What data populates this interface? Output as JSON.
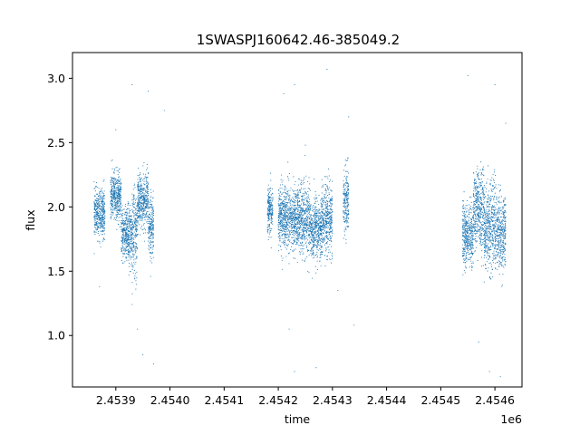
{
  "chart_data": {
    "type": "scatter",
    "title": "1SWASPJ160642.46-385049.2",
    "xlabel": "time",
    "ylabel": "flux",
    "x_offset_label": "1e6",
    "xlim": [
      2.45382,
      2.45465
    ],
    "ylim": [
      0.6,
      3.2
    ],
    "x_ticks": [
      2.4539,
      2.454,
      2.4541,
      2.4542,
      2.4543,
      2.4544,
      2.4545,
      2.4546
    ],
    "x_tick_labels": [
      "2.4539",
      "2.4540",
      "2.4541",
      "2.4542",
      "2.4543",
      "2.4544",
      "2.4545",
      "2.4546"
    ],
    "y_ticks": [
      1.0,
      1.5,
      2.0,
      2.5,
      3.0
    ],
    "y_tick_labels": [
      "1.0",
      "1.5",
      "2.0",
      "2.5",
      "3.0"
    ],
    "grid": false,
    "legend": "none",
    "marker_color": "#1f77b4",
    "series": [
      {
        "clusters": [
          {
            "x": [
              2.45386,
              2.45388
            ],
            "center": 1.95,
            "spread": 0.15
          },
          {
            "x": [
              2.45389,
              2.45391
            ],
            "center": 2.08,
            "spread": 0.15
          },
          {
            "x": [
              2.45391,
              2.45393
            ],
            "center": 1.78,
            "spread": 0.18
          },
          {
            "x": [
              2.45393,
              2.45394
            ],
            "center": 1.8,
            "spread": 0.28
          },
          {
            "x": [
              2.45394,
              2.45396
            ],
            "center": 2.05,
            "spread": 0.18
          },
          {
            "x": [
              2.45396,
              2.45397
            ],
            "center": 1.82,
            "spread": 0.2
          },
          {
            "x": [
              2.45418,
              2.45419
            ],
            "center": 1.98,
            "spread": 0.15
          },
          {
            "x": [
              2.4542,
              2.45423
            ],
            "center": 1.92,
            "spread": 0.2
          },
          {
            "x": [
              2.45423,
              2.45426
            ],
            "center": 1.9,
            "spread": 0.22
          },
          {
            "x": [
              2.45426,
              2.45428
            ],
            "center": 1.82,
            "spread": 0.2
          },
          {
            "x": [
              2.45428,
              2.4543
            ],
            "center": 1.9,
            "spread": 0.22
          },
          {
            "x": [
              2.45432,
              2.45433
            ],
            "center": 2.05,
            "spread": 0.2
          },
          {
            "x": [
              2.45454,
              2.45456
            ],
            "center": 1.78,
            "spread": 0.2
          },
          {
            "x": [
              2.45456,
              2.45458
            ],
            "center": 1.98,
            "spread": 0.25
          },
          {
            "x": [
              2.45458,
              2.4546
            ],
            "center": 1.85,
            "spread": 0.28
          },
          {
            "x": [
              2.4546,
              2.45462
            ],
            "center": 1.8,
            "spread": 0.25
          }
        ],
        "outliers": [
          [
            2.45387,
            1.38
          ],
          [
            2.4539,
            2.6
          ],
          [
            2.45393,
            2.95
          ],
          [
            2.45394,
            1.05
          ],
          [
            2.45395,
            0.85
          ],
          [
            2.45396,
            2.9
          ],
          [
            2.45397,
            0.78
          ],
          [
            2.45399,
            2.75
          ],
          [
            2.45421,
            2.88
          ],
          [
            2.45422,
            1.05
          ],
          [
            2.45423,
            0.72
          ],
          [
            2.45423,
            2.95
          ],
          [
            2.45425,
            2.48
          ],
          [
            2.45427,
            0.75
          ],
          [
            2.45429,
            3.07
          ],
          [
            2.45431,
            1.35
          ],
          [
            2.45433,
            2.7
          ],
          [
            2.45434,
            1.08
          ],
          [
            2.45455,
            3.02
          ],
          [
            2.45457,
            0.95
          ],
          [
            2.45459,
            0.72
          ],
          [
            2.45461,
            0.68
          ],
          [
            2.45462,
            2.65
          ],
          [
            2.4546,
            2.95
          ]
        ]
      }
    ]
  }
}
